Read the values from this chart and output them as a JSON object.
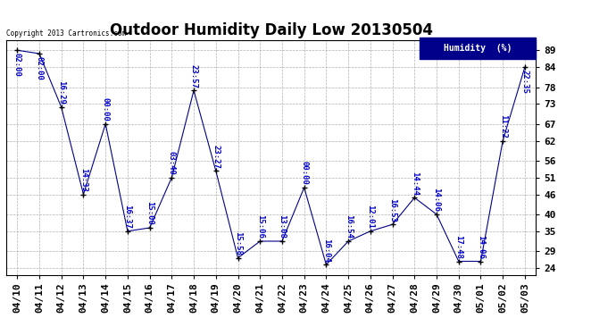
{
  "title": "Outdoor Humidity Daily Low 20130504",
  "copyright_text": "Copyright 2013 Cartronics.com",
  "legend_label": "Humidity  (%)",
  "dates": [
    "04/10",
    "04/11",
    "04/12",
    "04/13",
    "04/14",
    "04/15",
    "04/16",
    "04/17",
    "04/18",
    "04/19",
    "04/20",
    "04/21",
    "04/22",
    "04/23",
    "04/24",
    "04/25",
    "04/26",
    "04/27",
    "04/28",
    "04/29",
    "04/30",
    "05/01",
    "05/02",
    "05/03"
  ],
  "values": [
    89,
    88,
    72,
    46,
    67,
    35,
    36,
    51,
    77,
    53,
    27,
    32,
    32,
    48,
    25,
    32,
    35,
    37,
    45,
    40,
    26,
    26,
    62,
    84
  ],
  "time_labels": [
    "02:00",
    "02:00",
    "16:29",
    "14:33",
    "00:00",
    "16:37",
    "15:00",
    "03:40",
    "23:57",
    "23:27",
    "15:58",
    "15:06",
    "13:08",
    "00:00",
    "16:04",
    "16:54",
    "12:01",
    "16:53",
    "14:44",
    "14:06",
    "17:48",
    "14:06",
    "11:22",
    "22:35"
  ],
  "yticks": [
    24,
    29,
    35,
    40,
    46,
    51,
    56,
    62,
    67,
    73,
    78,
    84,
    89
  ],
  "line_color": "#00008B",
  "marker_color": "#000000",
  "label_color": "#0000CC",
  "bg_color": "#ffffff",
  "grid_color": "#b0b0b0",
  "legend_bg": "#00008B",
  "legend_text_color": "#ffffff",
  "title_fontsize": 12,
  "label_fontsize": 6.5,
  "tick_fontsize": 8,
  "ymin": 22,
  "ymax": 92
}
